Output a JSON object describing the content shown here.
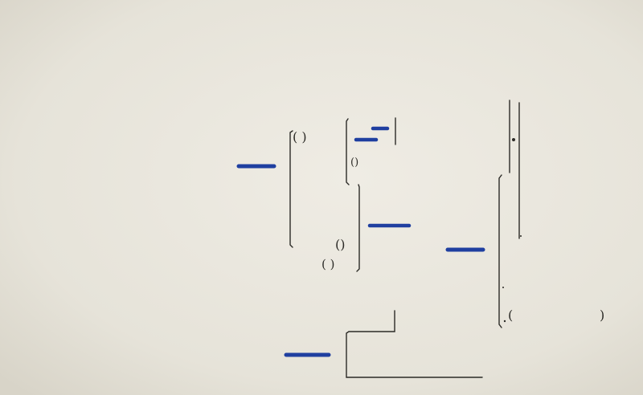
{
  "scene": {
    "paper_color": "#e9e6dc",
    "ink_color": "#2b2a26",
    "marker_color": "#1f3fa0"
  },
  "glyphs": {
    "paren_pair": "( )",
    "paren_pair_small": "()",
    "open_paren": "(",
    "close_paren": ")"
  }
}
